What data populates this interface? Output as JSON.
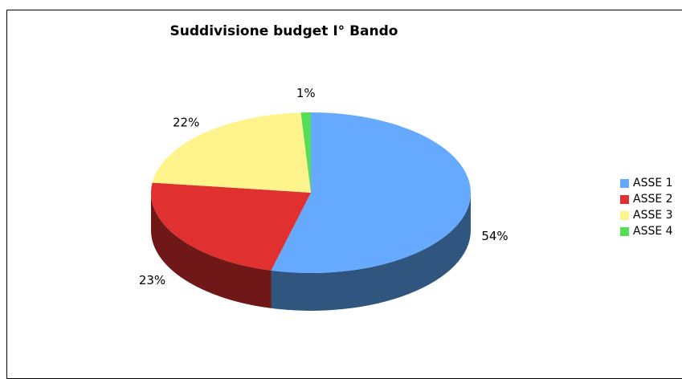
{
  "chart_data": {
    "type": "pie",
    "title": "Suddivisione budget I° Bando",
    "categories": [
      "ASSE 1",
      "ASSE 2",
      "ASSE 3",
      "ASSE 4"
    ],
    "values": [
      54,
      23,
      22,
      1
    ],
    "labels": [
      "54%",
      "23%",
      "22%",
      "1%"
    ],
    "colors": [
      "#66AAFF",
      "#E03030",
      "#FFF48C",
      "#55DD55"
    ],
    "side_colors": [
      "#30557F",
      "#701818",
      "#7F7A46",
      "#2A6E2A"
    ],
    "legend_position": "right",
    "three_d": true
  }
}
